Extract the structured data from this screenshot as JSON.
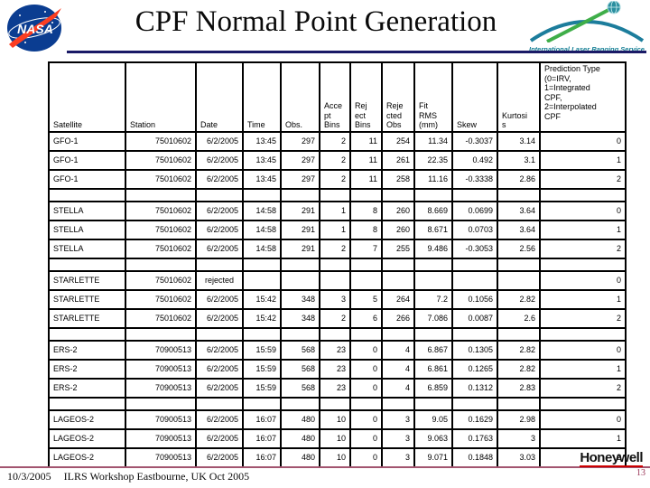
{
  "slide": {
    "title": "CPF Normal Point Generation",
    "nasa_logo_text": "NASA",
    "ilrs_logo_text": "International Laser Ranging Service",
    "footer_date": "10/3/2005",
    "footer_text": "ILRS Workshop Eastbourne, UK  Oct 2005",
    "page_number": "13",
    "honeywell_logo_text": "Honeywell"
  },
  "colors": {
    "header_rule": "#1a1a66",
    "footer_rule": "#a2546f",
    "honeywell_red": "#cc0000",
    "nasa_blue": "#0b3d91",
    "nasa_red": "#fc3d21",
    "ilrs_teal": "#157f95",
    "ilrs_green": "#3fae49"
  },
  "table": {
    "columns": [
      "Satellite",
      "Station",
      "Date",
      "Time",
      "Obs.",
      "Acce\npt\nBins",
      "Rej\nect\nBins",
      "Reje\ncted\nObs",
      "Fit\nRMS\n(mm)",
      "Skew",
      "Kurtosi\ns",
      "Prediction Type\n(0=IRV,\n1=Integrated\nCPF,\n2=Interpolated\nCPF"
    ],
    "rows": [
      {
        "type": "data",
        "cells": [
          "GFO-1",
          "75010602",
          "6/2/2005",
          "13:45",
          "297",
          "2",
          "11",
          "254",
          "11.34",
          "-0.3037",
          "3.14",
          "0"
        ]
      },
      {
        "type": "data",
        "cells": [
          "GFO-1",
          "75010602",
          "6/2/2005",
          "13:45",
          "297",
          "2",
          "11",
          "261",
          "22.35",
          "0.492",
          "3.1",
          "1"
        ]
      },
      {
        "type": "data",
        "cells": [
          "GFO-1",
          "75010602",
          "6/2/2005",
          "13:45",
          "297",
          "2",
          "11",
          "258",
          "11.16",
          "-0.3338",
          "2.86",
          "2"
        ]
      },
      {
        "type": "spacer",
        "cells": [
          "",
          "",
          "",
          "",
          "",
          "",
          "",
          "",
          "",
          "",
          "",
          ""
        ]
      },
      {
        "type": "data",
        "cells": [
          "STELLA",
          "75010602",
          "6/2/2005",
          "14:58",
          "291",
          "1",
          "8",
          "260",
          "8.669",
          "0.0699",
          "3.64",
          "0"
        ]
      },
      {
        "type": "data",
        "cells": [
          "STELLA",
          "75010602",
          "6/2/2005",
          "14:58",
          "291",
          "1",
          "8",
          "260",
          "8.671",
          "0.0703",
          "3.64",
          "1"
        ]
      },
      {
        "type": "data",
        "cells": [
          "STELLA",
          "75010602",
          "6/2/2005",
          "14:58",
          "291",
          "2",
          "7",
          "255",
          "9.486",
          "-0.3053",
          "2.56",
          "2"
        ]
      },
      {
        "type": "spacer",
        "cells": [
          "",
          "",
          "",
          "",
          "",
          "",
          "",
          "",
          "",
          "",
          "",
          ""
        ]
      },
      {
        "type": "data",
        "cells": [
          "STARLETTE",
          "75010602",
          "rejected",
          "",
          "",
          "",
          "",
          "",
          "",
          "",
          "",
          "0"
        ]
      },
      {
        "type": "data",
        "cells": [
          "STARLETTE",
          "75010602",
          "6/2/2005",
          "15:42",
          "348",
          "3",
          "5",
          "264",
          "7.2",
          "0.1056",
          "2.82",
          "1"
        ]
      },
      {
        "type": "data",
        "cells": [
          "STARLETTE",
          "75010602",
          "6/2/2005",
          "15:42",
          "348",
          "2",
          "6",
          "266",
          "7.086",
          "0.0087",
          "2.6",
          "2"
        ]
      },
      {
        "type": "spacer",
        "cells": [
          "",
          "",
          "",
          "",
          "",
          "",
          "",
          "",
          "",
          "",
          "",
          ""
        ]
      },
      {
        "type": "data",
        "cells": [
          "ERS-2",
          "70900513",
          "6/2/2005",
          "15:59",
          "568",
          "23",
          "0",
          "4",
          "6.867",
          "0.1305",
          "2.82",
          "0"
        ]
      },
      {
        "type": "data",
        "cells": [
          "ERS-2",
          "70900513",
          "6/2/2005",
          "15:59",
          "568",
          "23",
          "0",
          "4",
          "6.861",
          "0.1265",
          "2.82",
          "1"
        ]
      },
      {
        "type": "data",
        "cells": [
          "ERS-2",
          "70900513",
          "6/2/2005",
          "15:59",
          "568",
          "23",
          "0",
          "4",
          "6.859",
          "0.1312",
          "2.83",
          "2"
        ]
      },
      {
        "type": "spacer",
        "cells": [
          "",
          "",
          "",
          "",
          "",
          "",
          "",
          "",
          "",
          "",
          "",
          ""
        ]
      },
      {
        "type": "data",
        "cells": [
          "LAGEOS-2",
          "70900513",
          "6/2/2005",
          "16:07",
          "480",
          "10",
          "0",
          "3",
          "9.05",
          "0.1629",
          "2.98",
          "0"
        ]
      },
      {
        "type": "data",
        "cells": [
          "LAGEOS-2",
          "70900513",
          "6/2/2005",
          "16:07",
          "480",
          "10",
          "0",
          "3",
          "9.063",
          "0.1763",
          "3",
          "1"
        ]
      },
      {
        "type": "data",
        "cells": [
          "LAGEOS-2",
          "70900513",
          "6/2/2005",
          "16:07",
          "480",
          "10",
          "0",
          "3",
          "9.071",
          "0.1848",
          "3.03",
          "2"
        ]
      }
    ]
  }
}
